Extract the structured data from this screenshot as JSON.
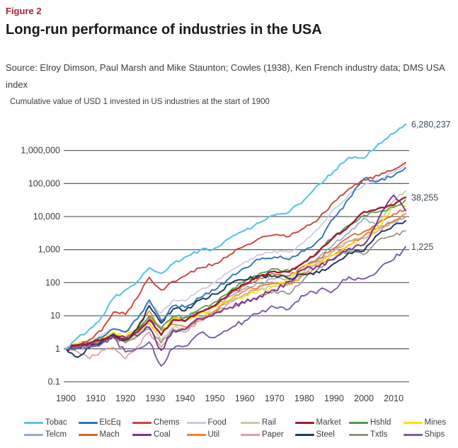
{
  "figure_label": "Figure 2",
  "title": "Long-run performance of industries in the USA",
  "source_line1": "Source: Elroy Dimson, Paul Marsh and Mike Staunton; Cowles (1938), Ken French industry data; DMS USA",
  "source_line2": "index",
  "subtitle": "Cumulative value of USD 1 invested in US industries at the start of 1900",
  "chart_data": {
    "type": "line",
    "y_scale": "log",
    "grid": true,
    "legend_position": "bottom",
    "ylim": [
      0.1,
      10000000
    ],
    "xlim": [
      1900,
      2015
    ],
    "x_ticks": [
      1900,
      1910,
      1920,
      1930,
      1940,
      1950,
      1960,
      1970,
      1980,
      1990,
      2000,
      2010
    ],
    "y_ticks": [
      {
        "label": "1,000,000",
        "value": 1000000
      },
      {
        "label": "100,000",
        "value": 100000
      },
      {
        "label": "10,000",
        "value": 10000
      },
      {
        "label": "1,000",
        "value": 1000
      },
      {
        "label": "100",
        "value": 100
      },
      {
        "label": "10",
        "value": 10
      },
      {
        "label": "1",
        "value": 1
      },
      {
        "label": "0.1",
        "value": 0.1
      }
    ],
    "annotations": [
      {
        "label": "6,280,237",
        "series": "Tobac",
        "value": 6280237
      },
      {
        "label": "38,255",
        "series": "Market",
        "value": 38255
      },
      {
        "label": "1,225",
        "series": "Ships",
        "value": 1225
      }
    ],
    "x": [
      1900,
      1904,
      1908,
      1912,
      1916,
      1920,
      1924,
      1928,
      1932,
      1936,
      1940,
      1945,
      1950,
      1955,
      1960,
      1965,
      1970,
      1975,
      1980,
      1985,
      1990,
      1995,
      2000,
      2005,
      2010,
      2014
    ],
    "series": [
      {
        "name": "Tobac",
        "color": "#5BC2E7",
        "volatility": 0.05,
        "values": [
          1,
          2.2,
          4,
          9,
          34,
          60,
          110,
          280,
          190,
          380,
          600,
          950,
          1100,
          2200,
          3800,
          6500,
          11000,
          14000,
          32000,
          95000,
          240000,
          620000,
          580000,
          1600000,
          3300000,
          6280237
        ]
      },
      {
        "name": "ElcEq",
        "color": "#2E74B5",
        "volatility": 0.06,
        "values": [
          1,
          1.0,
          1.5,
          2.2,
          4,
          3.2,
          8,
          30,
          7,
          20,
          18,
          35,
          60,
          140,
          280,
          500,
          600,
          500,
          900,
          2000,
          9000,
          35000,
          140000,
          120000,
          170000,
          300000
        ]
      },
      {
        "name": "Chems",
        "color": "#CC4439",
        "volatility": 0.05,
        "values": [
          1,
          1.3,
          1.9,
          3.5,
          13,
          11,
          35,
          145,
          60,
          110,
          160,
          280,
          375,
          700,
          1300,
          2200,
          2800,
          2500,
          4500,
          9000,
          28000,
          70000,
          130000,
          170000,
          260000,
          430000
        ]
      },
      {
        "name": "Food",
        "color": "#CDC8DF",
        "volatility": 0.04,
        "values": [
          1,
          1.2,
          1.7,
          2.5,
          4,
          3.4,
          8,
          25,
          12,
          30,
          28,
          60,
          100,
          220,
          420,
          700,
          900,
          850,
          1700,
          4500,
          17000,
          45000,
          90000,
          130000,
          220000,
          380000
        ]
      },
      {
        "name": "Rail",
        "color": "#BFCFA2",
        "volatility": 0.05,
        "values": [
          1,
          1.3,
          1.5,
          1.7,
          2.1,
          1.6,
          2.8,
          6,
          1.8,
          4.5,
          4,
          9,
          14,
          28,
          40,
          65,
          80,
          90,
          220,
          450,
          900,
          1800,
          2500,
          7000,
          30000,
          60000
        ]
      },
      {
        "name": "Market",
        "color": "#A01A33",
        "volatility": 0.04,
        "values": [
          1,
          1.3,
          1.5,
          1.9,
          2.3,
          1.9,
          3.2,
          7.5,
          2.6,
          7.5,
          6.8,
          13,
          20,
          48,
          90,
          160,
          220,
          210,
          420,
          900,
          2400,
          5200,
          14000,
          18000,
          22000,
          38255
        ]
      },
      {
        "name": "Hshld",
        "color": "#4C9C4C",
        "volatility": 0.045,
        "values": [
          1,
          1.2,
          1.5,
          1.9,
          2.4,
          2.0,
          3.8,
          10,
          4,
          10,
          9,
          16,
          26,
          55,
          110,
          190,
          260,
          230,
          420,
          950,
          2600,
          5500,
          11000,
          14000,
          19000,
          32000
        ]
      },
      {
        "name": "Mines",
        "color": "#FFDF00",
        "volatility": 0.075,
        "values": [
          1,
          1.4,
          1.6,
          2.1,
          3.2,
          2.4,
          3.6,
          6,
          2.8,
          8,
          7.5,
          12,
          18,
          30,
          42,
          60,
          80,
          120,
          300,
          380,
          700,
          1300,
          1500,
          5000,
          22000,
          20000
        ]
      },
      {
        "name": "Telcm",
        "color": "#92ABC8",
        "volatility": 0.045,
        "values": [
          1,
          1.2,
          1.5,
          1.9,
          2.3,
          2.1,
          3.4,
          7,
          4.5,
          9,
          8.5,
          13,
          19,
          38,
          65,
          95,
          130,
          140,
          260,
          600,
          1500,
          3200,
          9000,
          5000,
          7000,
          9500
        ]
      },
      {
        "name": "Mach",
        "color": "#CE6B29",
        "volatility": 0.055,
        "values": [
          1,
          1.1,
          1.4,
          1.8,
          2.6,
          1.9,
          3.4,
          9,
          2.6,
          8,
          7,
          13,
          21,
          45,
          80,
          140,
          180,
          160,
          320,
          550,
          1100,
          2400,
          3500,
          6500,
          12000,
          16000
        ]
      },
      {
        "name": "Coal",
        "color": "#7F3090",
        "volatility": 0.085,
        "values": [
          1,
          1.2,
          1.4,
          1.7,
          2.6,
          2.2,
          2.4,
          4.5,
          0.9,
          3.5,
          3.8,
          8,
          12,
          18,
          24,
          40,
          60,
          110,
          250,
          300,
          500,
          1100,
          1400,
          9000,
          45000,
          15000
        ]
      },
      {
        "name": "Util",
        "color": "#F28429",
        "volatility": 0.05,
        "values": [
          1,
          1.2,
          1.5,
          2.0,
          2.4,
          2.0,
          4.5,
          14,
          3.5,
          5.5,
          4.5,
          8,
          14,
          30,
          55,
          80,
          95,
          90,
          170,
          350,
          700,
          1400,
          2600,
          4500,
          7500,
          12000
        ]
      },
      {
        "name": "Paper",
        "color": "#D8A0A6",
        "volatility": 0.06,
        "values": [
          1,
          0.8,
          0.5,
          0.9,
          1.1,
          0.5,
          1.2,
          3.2,
          1.1,
          3.5,
          3.2,
          7,
          12,
          26,
          45,
          75,
          100,
          95,
          200,
          420,
          900,
          1800,
          2200,
          4000,
          6500,
          10000
        ]
      },
      {
        "name": "Steel",
        "color": "#1B3A5F",
        "volatility": 0.07,
        "values": [
          1,
          0.55,
          1.1,
          1.6,
          2.8,
          1.8,
          4,
          20,
          6,
          16,
          14,
          30,
          45,
          90,
          120,
          160,
          160,
          130,
          180,
          200,
          380,
          800,
          900,
          3000,
          5500,
          7500
        ]
      },
      {
        "name": "Txtls",
        "color": "#96917F",
        "volatility": 0.055,
        "values": [
          1,
          1.1,
          1.3,
          1.6,
          2.2,
          1.5,
          2.4,
          4,
          1.5,
          4,
          3.8,
          8,
          12,
          18,
          26,
          40,
          55,
          45,
          130,
          280,
          550,
          900,
          700,
          2000,
          2600,
          3700
        ]
      },
      {
        "name": "Ships",
        "color": "#7A5CA8",
        "volatility": 0.085,
        "values": [
          1,
          1.1,
          1.2,
          1.4,
          2.2,
          0.8,
          1.0,
          1.6,
          0.3,
          1.0,
          1.2,
          3,
          2.2,
          4,
          7,
          12,
          18,
          16,
          40,
          60,
          60,
          150,
          130,
          250,
          500,
          1225
        ]
      }
    ]
  }
}
